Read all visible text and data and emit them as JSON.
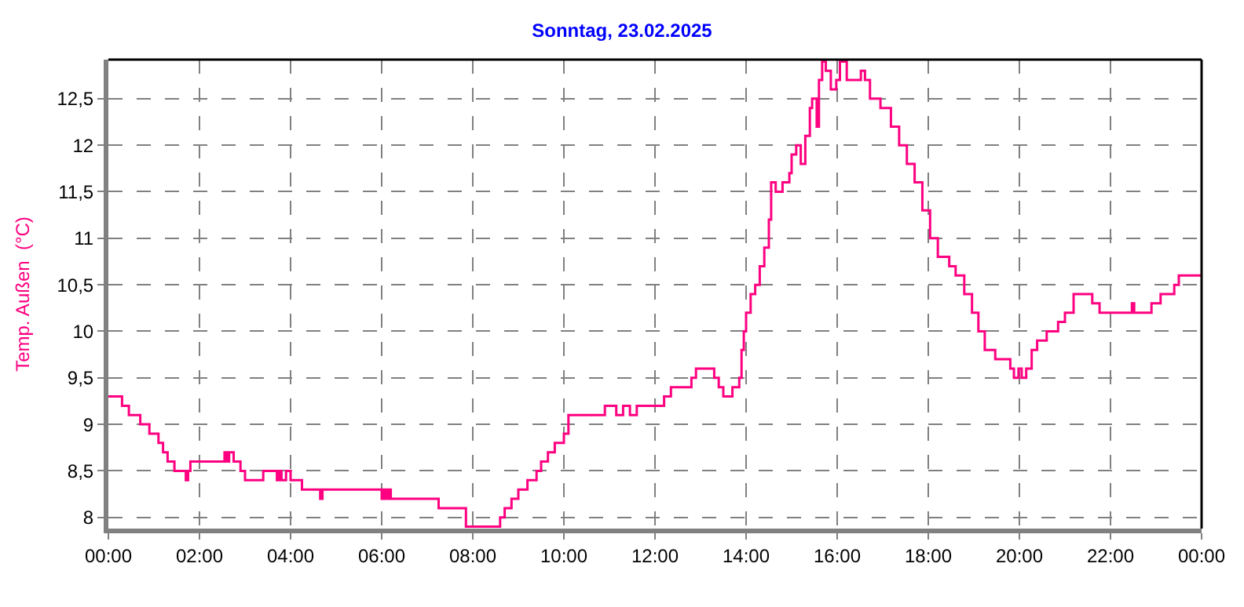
{
  "chart_data": {
    "type": "step",
    "title": "Sonntag, 23.02.2025",
    "ylabel": "Temp. Außen  (°C)",
    "x": [
      0,
      0.3,
      0.45,
      0.7,
      0.9,
      1.1,
      1.2,
      1.3,
      1.45,
      1.7,
      1.75,
      1.8,
      2.55,
      2.6,
      2.65,
      2.75,
      2.9,
      3.0,
      3.4,
      3.7,
      3.75,
      3.8,
      3.9,
      4.0,
      4.25,
      4.65,
      4.7,
      6.0,
      6.05,
      6.1,
      6.15,
      6.2,
      7.25,
      7.85,
      8.6,
      8.7,
      8.85,
      9.0,
      9.2,
      9.4,
      9.5,
      9.65,
      9.8,
      10.0,
      10.1,
      10.9,
      11.15,
      11.3,
      11.45,
      11.6,
      12.2,
      12.35,
      12.8,
      12.9,
      13.3,
      13.4,
      13.5,
      13.7,
      13.85,
      13.9,
      13.95,
      14.0,
      14.1,
      14.2,
      14.3,
      14.4,
      14.5,
      14.55,
      14.65,
      14.8,
      14.95,
      15.0,
      15.1,
      15.2,
      15.3,
      15.4,
      15.45,
      15.55,
      15.6,
      15.67,
      15.75,
      15.86,
      15.98,
      16.06,
      16.21,
      16.52,
      16.61,
      16.72,
      16.95,
      17.18,
      17.36,
      17.53,
      17.7,
      17.87,
      18.04,
      18.21,
      18.46,
      18.6,
      18.79,
      18.96,
      19.1,
      19.24,
      19.47,
      19.8,
      19.88,
      19.98,
      20.05,
      20.15,
      20.27,
      20.39,
      20.6,
      20.85,
      21.0,
      21.19,
      21.6,
      21.76,
      22.47,
      22.52,
      22.9,
      23.1,
      23.4,
      23.5,
      24
    ],
    "series": [
      {
        "color": "#ff0080",
        "values": [
          9.3,
          9.2,
          9.1,
          9.0,
          8.9,
          8.8,
          8.7,
          8.6,
          8.5,
          8.4,
          8.5,
          8.6,
          8.7,
          8.6,
          8.7,
          8.6,
          8.5,
          8.4,
          8.5,
          8.4,
          8.5,
          8.4,
          8.5,
          8.4,
          8.3,
          8.2,
          8.3,
          8.2,
          8.3,
          8.2,
          8.3,
          8.2,
          8.1,
          7.9,
          8.0,
          8.1,
          8.2,
          8.3,
          8.4,
          8.5,
          8.6,
          8.7,
          8.8,
          8.9,
          9.1,
          9.2,
          9.1,
          9.2,
          9.1,
          9.2,
          9.3,
          9.4,
          9.5,
          9.6,
          9.5,
          9.4,
          9.3,
          9.4,
          9.5,
          9.8,
          10.0,
          10.2,
          10.4,
          10.5,
          10.7,
          10.9,
          11.2,
          11.6,
          11.5,
          11.6,
          11.7,
          11.9,
          12.0,
          11.8,
          12.1,
          12.4,
          12.5,
          12.2,
          12.7,
          12.9,
          12.8,
          12.6,
          12.7,
          12.9,
          12.7,
          12.8,
          12.7,
          12.5,
          12.4,
          12.2,
          12.0,
          11.8,
          11.6,
          11.3,
          11.0,
          10.8,
          10.7,
          10.6,
          10.4,
          10.2,
          10.0,
          9.8,
          9.7,
          9.6,
          9.5,
          9.6,
          9.5,
          9.6,
          9.8,
          9.9,
          10.0,
          10.1,
          10.2,
          10.4,
          10.3,
          10.2,
          10.3,
          10.2,
          10.3,
          10.4,
          10.5,
          10.6,
          10.6
        ]
      }
    ],
    "xlim": [
      0,
      24
    ],
    "xticks": [
      {
        "value": 0,
        "label": "00:00"
      },
      {
        "value": 2,
        "label": "02:00"
      },
      {
        "value": 4,
        "label": "04:00"
      },
      {
        "value": 6,
        "label": "06:00"
      },
      {
        "value": 8,
        "label": "08:00"
      },
      {
        "value": 10,
        "label": "10:00"
      },
      {
        "value": 12,
        "label": "12:00"
      },
      {
        "value": 14,
        "label": "14:00"
      },
      {
        "value": 16,
        "label": "16:00"
      },
      {
        "value": 18,
        "label": "18:00"
      },
      {
        "value": 20,
        "label": "20:00"
      },
      {
        "value": 22,
        "label": "22:00"
      },
      {
        "value": 24,
        "label": "00:00"
      }
    ],
    "ylim": [
      7.88,
      12.92
    ],
    "yticks": [
      8,
      {
        "value": 8.5,
        "label": "8,5"
      },
      9,
      {
        "value": 9.5,
        "label": "9,5"
      },
      10,
      {
        "value": 10.5,
        "label": "10,5"
      },
      11,
      {
        "value": 11.5,
        "label": "11,5"
      },
      12,
      {
        "value": 12.5,
        "label": "12,5"
      }
    ],
    "grid": true,
    "line_style": "solid"
  }
}
